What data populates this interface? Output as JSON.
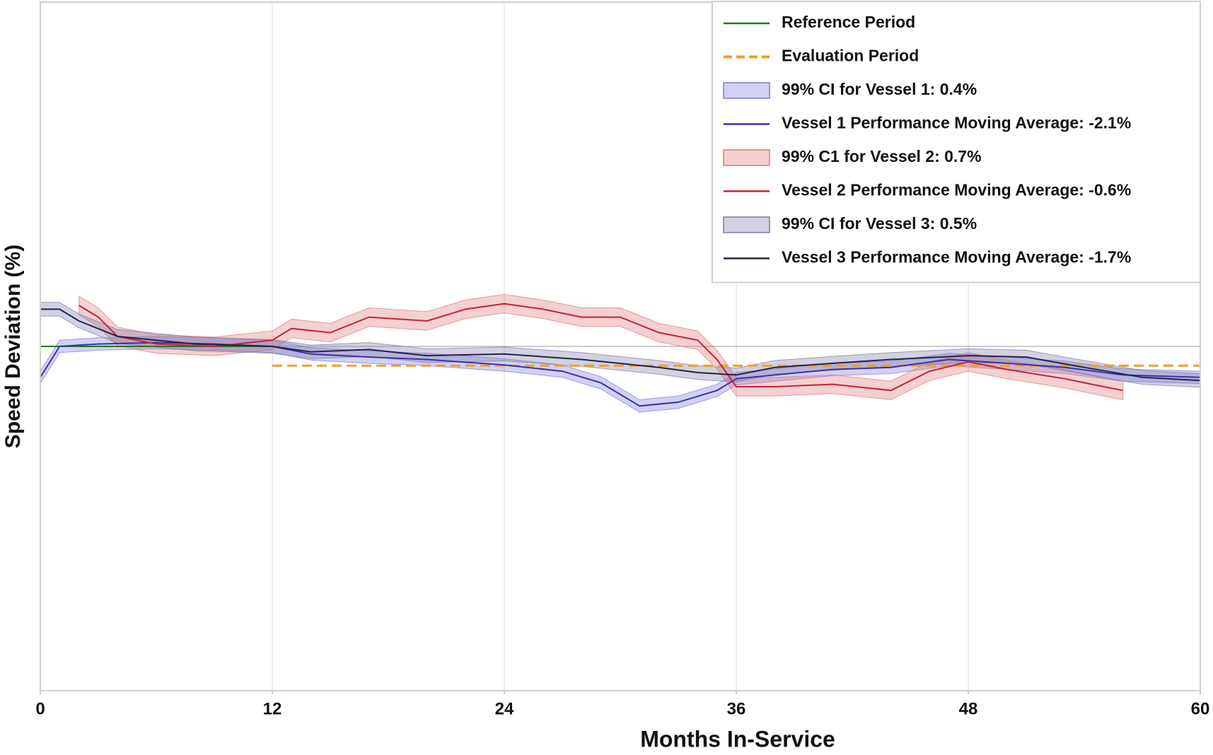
{
  "chart_data": {
    "type": "line",
    "x_label": "Months In-Service",
    "y_label": "Speed Deviation (%)",
    "xlim": [
      0,
      60
    ],
    "xticks": [
      0,
      12,
      24,
      36,
      48,
      60
    ],
    "ylim": [
      -10,
      10
    ],
    "grid": true,
    "legend": "upper right",
    "series": [
      {
        "name": "Reference Period",
        "style": "solid",
        "color": "#1e7a1e",
        "x": [
          0,
          12
        ],
        "values": [
          0,
          0
        ]
      },
      {
        "name": "Evaluation Period",
        "style": "dashed",
        "color": "#f0a020",
        "x": [
          12,
          60
        ],
        "values": [
          -0.56,
          -0.56
        ]
      },
      {
        "name": "99% CI for Vessel 1: 0.4%",
        "style": "band",
        "color": "#7b7bdd",
        "error": 0.18,
        "x": [
          0,
          1,
          3,
          6,
          9,
          12,
          14,
          17,
          20,
          24,
          27,
          29,
          31,
          33,
          35,
          36,
          38,
          41,
          44,
          47,
          50,
          53,
          56,
          60
        ],
        "values": [
          -0.9,
          0,
          0.07,
          0.11,
          0.07,
          0,
          -0.22,
          -0.31,
          -0.38,
          -0.54,
          -0.72,
          -1.06,
          -1.73,
          -1.62,
          -1.28,
          -0.94,
          -0.83,
          -0.67,
          -0.61,
          -0.38,
          -0.49,
          -0.61,
          -0.83,
          -0.9
        ]
      },
      {
        "name": "Vessel 1 Performance Moving Average: -2.1%",
        "style": "solid",
        "color": "#3b2fb0",
        "x": [
          0,
          1,
          3,
          6,
          9,
          12,
          14,
          17,
          20,
          24,
          27,
          29,
          31,
          33,
          35,
          36,
          38,
          41,
          44,
          47,
          50,
          53,
          56,
          60
        ],
        "values": [
          -0.9,
          0,
          0.07,
          0.11,
          0.07,
          0,
          -0.22,
          -0.31,
          -0.38,
          -0.54,
          -0.72,
          -1.06,
          -1.73,
          -1.62,
          -1.28,
          -0.94,
          -0.83,
          -0.67,
          -0.61,
          -0.38,
          -0.49,
          -0.61,
          -0.83,
          -0.9
        ]
      },
      {
        "name": "99% C1 for Vessel 2: 0.7%",
        "style": "band",
        "color": "#e07878",
        "error": 0.27,
        "x": [
          2,
          3,
          4,
          6,
          9,
          12,
          13,
          15,
          17,
          20,
          22,
          24,
          26,
          28,
          30,
          32,
          34,
          35,
          36,
          38,
          41,
          44,
          46,
          48,
          50,
          53,
          55,
          56
        ],
        "values": [
          1.19,
          0.85,
          0.29,
          0.07,
          0,
          0.18,
          0.52,
          0.4,
          0.85,
          0.74,
          1.08,
          1.24,
          1.08,
          0.85,
          0.85,
          0.4,
          0.18,
          -0.38,
          -1.17,
          -1.17,
          -1.1,
          -1.28,
          -0.72,
          -0.45,
          -0.67,
          -0.94,
          -1.17,
          -1.28
        ]
      },
      {
        "name": "Vessel 2 Performance Moving Average: -0.6%",
        "style": "solid",
        "color": "#c8203a",
        "x": [
          2,
          3,
          4,
          6,
          9,
          12,
          13,
          15,
          17,
          20,
          22,
          24,
          26,
          28,
          30,
          32,
          34,
          35,
          36,
          38,
          41,
          44,
          46,
          48,
          50,
          53,
          55,
          56
        ],
        "values": [
          1.19,
          0.85,
          0.29,
          0.07,
          0,
          0.18,
          0.52,
          0.4,
          0.85,
          0.74,
          1.08,
          1.24,
          1.08,
          0.85,
          0.85,
          0.4,
          0.18,
          -0.38,
          -1.17,
          -1.17,
          -1.1,
          -1.28,
          -0.72,
          -0.45,
          -0.67,
          -0.94,
          -1.17,
          -1.28
        ]
      },
      {
        "name": "99% CI for Vessel 3: 0.5%",
        "style": "band",
        "color": "#7a7aa8",
        "error": 0.2,
        "x": [
          0,
          1,
          2,
          4,
          8,
          12,
          14,
          17,
          20,
          24,
          28,
          32,
          34,
          36,
          38,
          41,
          44,
          48,
          51,
          54,
          57,
          60
        ],
        "values": [
          1.08,
          1.08,
          0.74,
          0.29,
          0.07,
          0,
          -0.16,
          -0.09,
          -0.27,
          -0.22,
          -0.38,
          -0.61,
          -0.76,
          -0.83,
          -0.61,
          -0.49,
          -0.38,
          -0.27,
          -0.31,
          -0.61,
          -0.9,
          -0.99
        ]
      },
      {
        "name": "Vessel 3 Performance Moving Average: -1.7%",
        "style": "solid",
        "color": "#22224e",
        "x": [
          0,
          1,
          2,
          4,
          8,
          12,
          14,
          17,
          20,
          24,
          28,
          32,
          34,
          36,
          38,
          41,
          44,
          48,
          51,
          54,
          57,
          60
        ],
        "values": [
          1.08,
          1.08,
          0.74,
          0.29,
          0.07,
          0,
          -0.16,
          -0.09,
          -0.27,
          -0.22,
          -0.38,
          -0.61,
          -0.76,
          -0.83,
          -0.61,
          -0.49,
          -0.38,
          -0.27,
          -0.31,
          -0.61,
          -0.9,
          -0.99
        ]
      }
    ]
  }
}
